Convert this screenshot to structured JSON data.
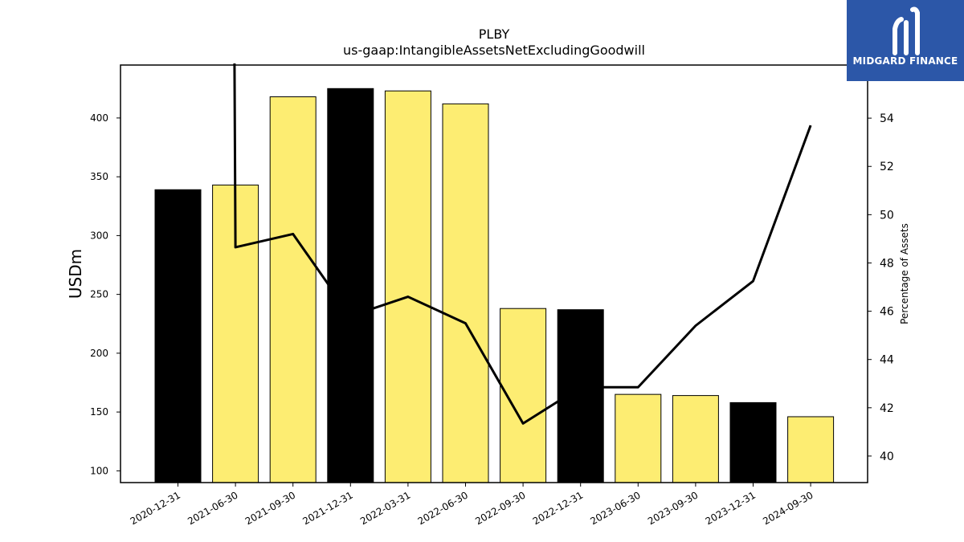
{
  "chart_data": {
    "type": "bar",
    "title": "PLBY",
    "subtitle": "us-gaap:IntangibleAssetsNetExcludingGoodwill",
    "ylabel": "USDm",
    "y2label": "Percentage of Assets",
    "ylim": [
      90,
      445
    ],
    "y2lim": [
      38.9,
      56.2
    ],
    "yticks": [
      100,
      150,
      200,
      250,
      300,
      350,
      400
    ],
    "y2ticks": [
      40,
      42,
      44,
      46,
      48,
      50,
      52,
      54
    ],
    "categories": [
      "2020-12-31",
      "2021-06-30",
      "2021-09-30",
      "2021-12-31",
      "2022-03-31",
      "2022-06-30",
      "2022-09-30",
      "2022-12-31",
      "2023-06-30",
      "2023-09-30",
      "2023-12-31",
      "2024-09-30"
    ],
    "series": [
      {
        "values": [
          339,
          343,
          418,
          425,
          423,
          412,
          238,
          237,
          165,
          164,
          158,
          146
        ],
        "highlight": [
          true,
          false,
          false,
          true,
          false,
          false,
          false,
          true,
          false,
          false,
          true,
          false
        ],
        "colors": {
          "highlight": "#000000",
          "normal": "#fded72",
          "edge": "#000000"
        }
      },
      {
        "axis": "right",
        "values": [
          null,
          48.65,
          49.2,
          45.8,
          46.6,
          45.5,
          41.35,
          42.85,
          42.85,
          45.4,
          47.25,
          53.7
        ],
        "offscale_start": true,
        "color": "#000000"
      }
    ],
    "grid": false
  },
  "logo": {
    "text": "MIDGARD FINANCE",
    "background": "#2c57a8"
  }
}
